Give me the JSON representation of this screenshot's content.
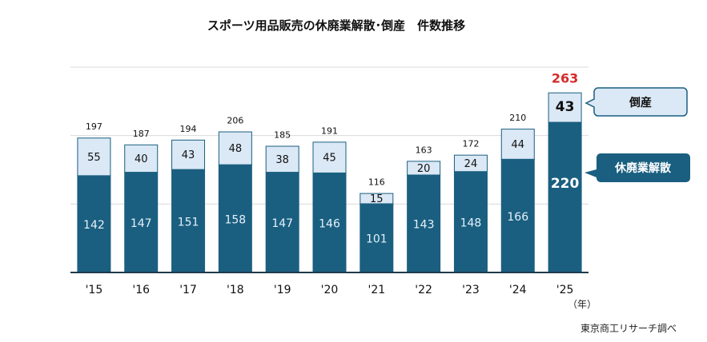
{
  "chart_data": {
    "type": "bar",
    "stacked": true,
    "title": "スポーツ用品販売の休廃業解散･倒産　件数推移",
    "categories": [
      "'15",
      "'16",
      "'17",
      "'18",
      "'19",
      "'20",
      "'21",
      "'22",
      "'23",
      "'24",
      "'25"
    ],
    "series": [
      {
        "name": "休廃業解散",
        "values": [
          142,
          147,
          151,
          158,
          147,
          146,
          101,
          143,
          148,
          166,
          220
        ],
        "color": "#1a5f80"
      },
      {
        "name": "倒産",
        "values": [
          55,
          40,
          43,
          48,
          38,
          45,
          15,
          20,
          24,
          44,
          43
        ],
        "color": "#dbe8f5"
      }
    ],
    "totals": [
      197,
      187,
      194,
      206,
      185,
      191,
      116,
      163,
      172,
      210,
      263
    ],
    "highlight_total_color": "#d42a2a",
    "xlabel": "（年）",
    "ylim": [
      0,
      300
    ],
    "grid": true,
    "legend": "right, callouts",
    "source": "東京商工リサーチ調べ"
  }
}
